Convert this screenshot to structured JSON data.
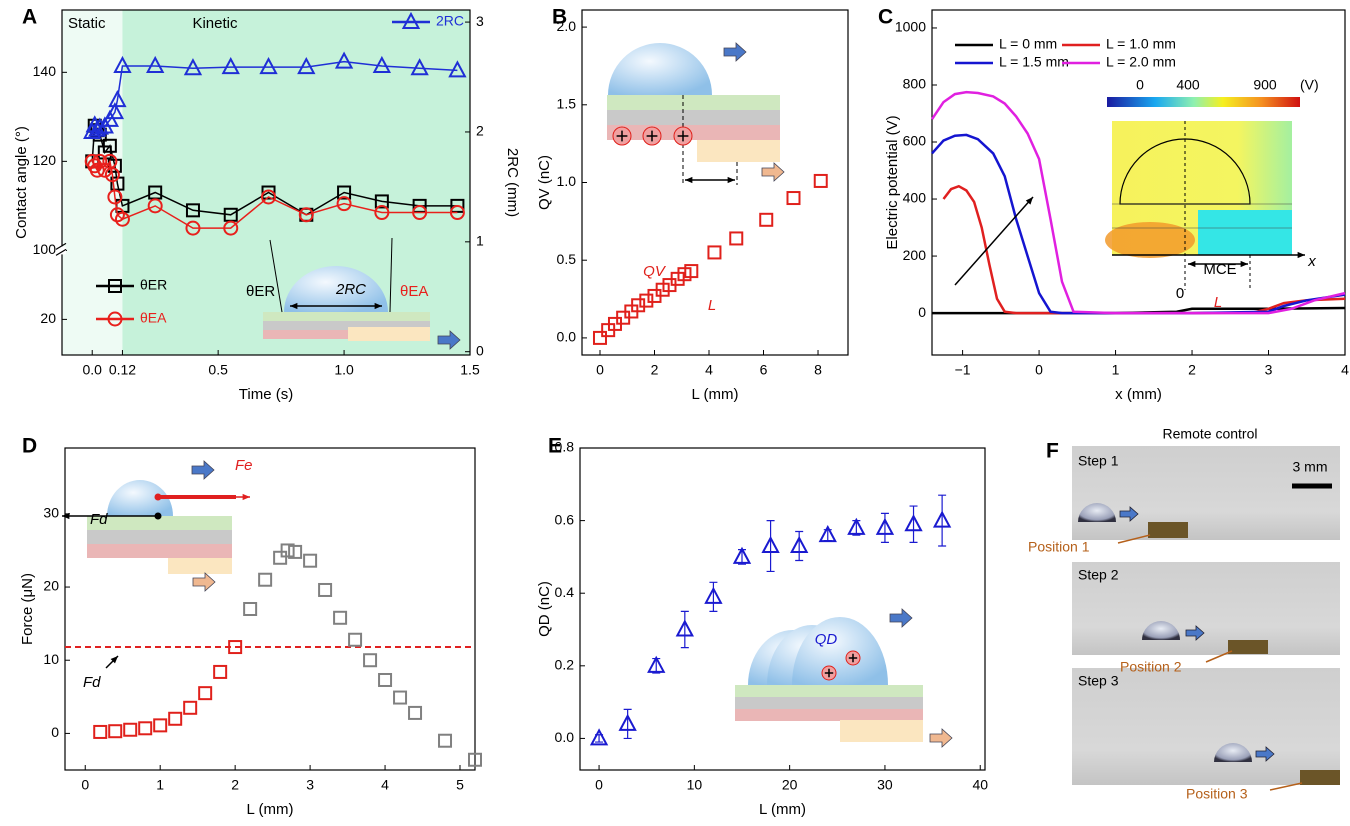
{
  "chart_data": [
    {
      "type": "line",
      "panel_label": "A",
      "x_label": "Time (s)",
      "y_label": "Contact angle (°)",
      "y2_label": "2RC (mm)",
      "xlim": [
        -0.12,
        1.5
      ],
      "xticks": [
        {
          "value": 0,
          "label": "0.0"
        },
        0.12,
        0.5,
        {
          "value": 1,
          "label": "1.0"
        },
        1.5
      ],
      "ylim": [
        12,
        154
      ],
      "ybreak": [
        35.5,
        100
      ],
      "yticks": [
        20,
        100,
        120,
        140
      ],
      "y2lim": [
        -0.03,
        3.11
      ],
      "y2ticks": [
        0,
        1,
        2,
        3
      ],
      "regions": [
        {
          "label": "Static",
          "x": [
            -0.12,
            0.12
          ],
          "color": "#eefbf4"
        },
        {
          "label": "Kinetic",
          "x": [
            0.12,
            1.5
          ],
          "color": "#c6f2da"
        }
      ],
      "series": [
        {
          "name": "θER",
          "color": "#000000",
          "marker": "square",
          "x": [
            0,
            0.01,
            0.02,
            0.03,
            0.05,
            0.07,
            0.09,
            0.1,
            0.12,
            0.25,
            0.4,
            0.55,
            0.7,
            0.85,
            1.0,
            1.15,
            1.3,
            1.45
          ],
          "values": [
            120,
            128,
            127,
            126,
            122,
            123.5,
            119,
            115,
            110,
            113,
            109,
            108,
            113,
            108,
            113,
            111,
            110,
            110
          ]
        },
        {
          "name": "θEA",
          "color": "#e8201c",
          "marker": "circle",
          "x": [
            0,
            0.01,
            0.02,
            0.03,
            0.05,
            0.07,
            0.08,
            0.09,
            0.1,
            0.12,
            0.25,
            0.4,
            0.55,
            0.7,
            0.85,
            1.0,
            1.15,
            1.3,
            1.45
          ],
          "values": [
            120,
            119,
            118,
            120,
            118,
            120,
            117,
            112,
            108,
            107,
            110,
            105,
            105,
            112,
            108,
            110.5,
            108.5,
            108.5,
            108.5
          ]
        },
        {
          "name": "2RC",
          "color": "#1f2fd6",
          "marker": "triangle",
          "axis": "y2",
          "x": [
            0,
            0.01,
            0.02,
            0.03,
            0.05,
            0.07,
            0.09,
            0.1,
            0.12,
            0.25,
            0.4,
            0.55,
            0.7,
            0.85,
            1.0,
            1.15,
            1.3,
            1.45
          ],
          "values": [
            2.0,
            2.06,
            2.02,
            2.04,
            2.05,
            2.11,
            2.18,
            2.29,
            2.6,
            2.6,
            2.58,
            2.59,
            2.59,
            2.59,
            2.64,
            2.6,
            2.58,
            2.56
          ]
        }
      ],
      "annotations": [
        {
          "text": "θER",
          "color": "#000000"
        },
        {
          "text": "2RC",
          "color": "#000000"
        },
        {
          "text": "θEA",
          "color": "#e8201c"
        }
      ]
    },
    {
      "type": "scatter",
      "panel_label": "B",
      "x_label": "L (mm)",
      "y_label": "QV (nC)",
      "xlim": [
        -0.66,
        9.1
      ],
      "xticks": [
        0,
        2,
        4,
        6,
        8
      ],
      "ylim": [
        -0.11,
        2.11
      ],
      "yticks": [
        {
          "value": 0,
          "label": "0.0"
        },
        0.5,
        {
          "value": 1,
          "label": "1.0"
        },
        1.5,
        {
          "value": 2,
          "label": "2.0"
        }
      ],
      "series": [
        {
          "color": "#e0201b",
          "marker": "square",
          "x": [
            0,
            0.3,
            0.55,
            0.85,
            1.15,
            1.4,
            1.7,
            2.0,
            2.3,
            2.55,
            2.85,
            3.1,
            3.35,
            4.2,
            5.0,
            6.1,
            7.1,
            8.1
          ],
          "values": [
            0,
            0.05,
            0.09,
            0.13,
            0.17,
            0.21,
            0.24,
            0.27,
            0.31,
            0.34,
            0.38,
            0.41,
            0.43,
            0.55,
            0.64,
            0.76,
            0.9,
            1.01
          ]
        }
      ],
      "annotations": [
        {
          "text": "QV",
          "color": "#e0201b"
        },
        {
          "text": "L",
          "color": "#e0201b"
        }
      ]
    },
    {
      "type": "line",
      "panel_label": "C",
      "x_label": "x (mm)",
      "y_label": "Electric potential (V)",
      "xlim": [
        -1.4,
        4
      ],
      "xticks": [
        {
          "value": -1,
          "label": "−1"
        },
        0,
        1,
        2,
        3,
        4
      ],
      "ylim": [
        -147,
        1063
      ],
      "yticks": [
        0,
        200,
        400,
        600,
        800,
        1000
      ],
      "series": [
        {
          "name": "L = 0 mm",
          "color": "#000000",
          "x": [
            -1.4,
            -1,
            0,
            1,
            1.8,
            2,
            3,
            4
          ],
          "values": [
            0,
            0,
            0,
            0,
            5,
            15,
            15,
            18
          ]
        },
        {
          "name": "L = 1.0 mm",
          "color": "#e02020",
          "x": [
            -1.25,
            -1.15,
            -1.05,
            -0.95,
            -0.85,
            -0.75,
            -0.65,
            -0.55,
            -0.45,
            -0.3,
            0,
            1,
            2,
            2.8,
            3.0,
            3.2,
            3.5,
            4
          ],
          "values": [
            400,
            435,
            445,
            430,
            390,
            300,
            170,
            50,
            5,
            0,
            0,
            0,
            0,
            2,
            15,
            35,
            45,
            50
          ]
        },
        {
          "name": "L = 1.5 mm",
          "color": "#1515d0",
          "x": [
            -1.4,
            -1.25,
            -1.1,
            -0.95,
            -0.8,
            -0.6,
            -0.45,
            -0.3,
            -0.15,
            0,
            0.15,
            0.3,
            1,
            2,
            3,
            3.2,
            3.5,
            4
          ],
          "values": [
            560,
            605,
            622,
            625,
            610,
            560,
            480,
            330,
            200,
            70,
            5,
            0,
            0,
            0,
            5,
            25,
            45,
            65
          ]
        },
        {
          "name": "L = 2.0 mm",
          "color": "#e020e0",
          "x": [
            -1.4,
            -1.25,
            -1.1,
            -0.95,
            -0.8,
            -0.6,
            -0.45,
            -0.3,
            -0.15,
            0,
            0.15,
            0.3,
            0.45,
            1,
            2,
            3,
            3.3,
            3.6,
            4
          ],
          "values": [
            680,
            740,
            768,
            775,
            772,
            760,
            735,
            690,
            630,
            540,
            330,
            110,
            5,
            0,
            0,
            0,
            15,
            45,
            70
          ]
        }
      ],
      "colorbar": {
        "ticks": [
          0,
          400,
          900
        ],
        "unit": "(V)"
      },
      "annotations": [
        {
          "text": "MCE",
          "color": "#000000"
        },
        {
          "text": "x",
          "color": "#000000"
        },
        {
          "text": "0",
          "color": "#000000"
        },
        {
          "text": "L",
          "color": "#e02020"
        }
      ]
    },
    {
      "type": "scatter",
      "panel_label": "D",
      "x_label": "L (mm)",
      "y_label": "Force (μN)",
      "xlim": [
        -0.27,
        5.2
      ],
      "xticks": [
        0,
        1,
        2,
        3,
        4,
        5
      ],
      "ylim": [
        -5,
        39
      ],
      "yticks": [
        0,
        10,
        20,
        30
      ],
      "hline": {
        "value": 11.8,
        "color": "#e02020"
      },
      "series": [
        {
          "color": "#e0201b",
          "marker": "square",
          "x": [
            0.2,
            0.4,
            0.6,
            0.8,
            1.0,
            1.2,
            1.4,
            1.6,
            1.8,
            2.0
          ],
          "values": [
            0.2,
            0.3,
            0.5,
            0.7,
            1.1,
            2.0,
            3.5,
            5.5,
            8.4,
            11.8
          ]
        },
        {
          "color": "#808080",
          "marker": "square",
          "x": [
            2.2,
            2.4,
            2.6,
            2.7,
            2.8,
            3.0,
            3.2,
            3.4,
            3.6,
            3.8,
            4.0,
            4.2,
            4.4,
            4.8,
            5.2
          ],
          "values": [
            17,
            21,
            24,
            25,
            24.8,
            23.6,
            19.6,
            15.8,
            12.8,
            10.0,
            7.3,
            4.9,
            2.8,
            -1,
            -3.6
          ]
        }
      ],
      "annotations": [
        {
          "text": "Fd",
          "color": "#000000"
        },
        {
          "text": "Fe",
          "color": "#e02020"
        },
        {
          "text": "Fd",
          "color": "#000000"
        }
      ]
    },
    {
      "type": "scatter",
      "panel_label": "E",
      "x_label": "L (mm)",
      "y_label": "QD (nC)",
      "xlim": [
        -2,
        40.5
      ],
      "xticks": [
        0,
        10,
        20,
        30,
        40
      ],
      "ylim": [
        -0.087,
        0.8
      ],
      "yticks": [
        {
          "value": 0,
          "label": "0.0"
        },
        0.2,
        0.4,
        0.6,
        0.8
      ],
      "series": [
        {
          "color": "#1a1ad0",
          "marker": "triangle",
          "x": [
            0,
            3,
            6,
            9,
            12,
            15,
            18,
            21,
            24,
            27,
            30,
            33,
            36
          ],
          "values": [
            0,
            0.04,
            0.2,
            0.3,
            0.39,
            0.5,
            0.53,
            0.53,
            0.56,
            0.58,
            0.58,
            0.59,
            0.6
          ],
          "errors": [
            0.01,
            0.04,
            0.02,
            0.05,
            0.04,
            0.02,
            0.07,
            0.04,
            0.015,
            0.02,
            0.04,
            0.05,
            0.07
          ]
        }
      ],
      "annotations": [
        {
          "text": "QD",
          "color": "#1a1ad0"
        }
      ]
    }
  ],
  "photo_panel": {
    "panel_label": "F",
    "title": "Remote control",
    "scale_bar": "3 mm",
    "steps": [
      {
        "label": "Step 1",
        "position": "Position 1"
      },
      {
        "label": "Step 2",
        "position": "Position 2"
      },
      {
        "label": "Step 3",
        "position": "Position 3"
      }
    ]
  }
}
